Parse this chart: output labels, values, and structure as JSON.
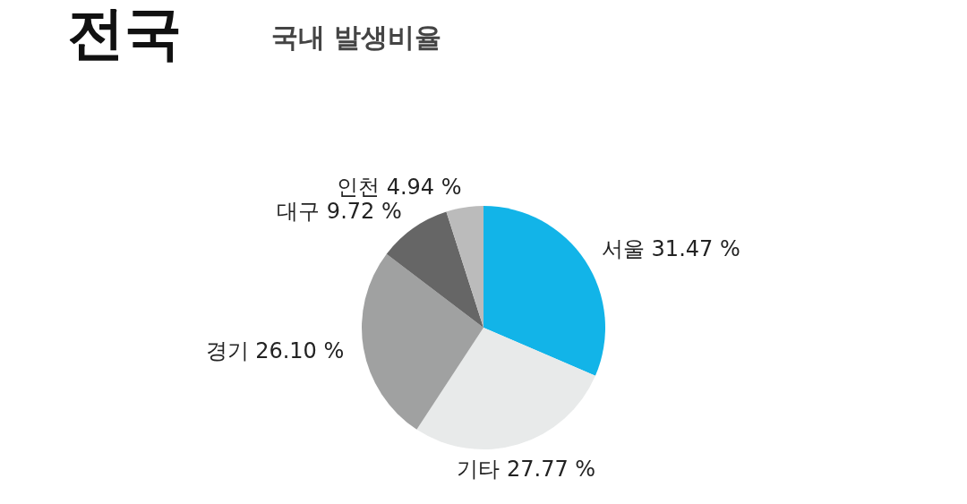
{
  "chart_data": {
    "type": "pie",
    "title": "전국",
    "subtitle": "국내 발생비율",
    "categories": [
      "서울",
      "기타",
      "경기",
      "대구",
      "인천"
    ],
    "values": [
      31.47,
      27.77,
      26.1,
      9.72,
      4.94
    ],
    "value_labels": [
      "31.47 %",
      "27.77 %",
      "26.10 %",
      "9.72 %",
      "4.94 %"
    ],
    "colors": [
      "#12b4e8",
      "#e8eaea",
      "#a0a1a1",
      "#666666",
      "#bbbbbb"
    ]
  }
}
